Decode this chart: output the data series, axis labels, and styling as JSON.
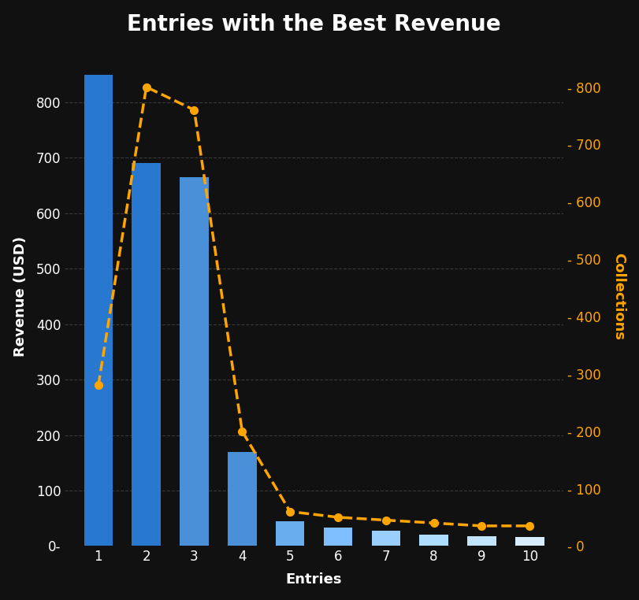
{
  "title": "Entries with the Best Revenue",
  "entries": [
    1,
    2,
    3,
    4,
    5,
    6,
    7,
    8,
    9,
    10
  ],
  "revenue": [
    850,
    690,
    665,
    170,
    45,
    33,
    28,
    20,
    18,
    16
  ],
  "collections": [
    280,
    800,
    760,
    200,
    60,
    50,
    45,
    40,
    35,
    35
  ],
  "bar_colors": [
    "#2878D0",
    "#2878D0",
    "#4A90D9",
    "#4A90D9",
    "#6AADEE",
    "#80BFFF",
    "#9ACEFF",
    "#AEDDFF",
    "#C2E5FF",
    "#D8EEFF"
  ],
  "line_color": "#FFA500",
  "background_color": "#111111",
  "text_color": "#FFFFFF",
  "grid_color": "#555555",
  "xlabel": "Entries",
  "ylabel_left": "Revenue (USD)",
  "ylabel_right": "Collections",
  "ylim_left": [
    0,
    900
  ],
  "ylim_right": [
    0,
    870
  ],
  "right_yticks": [
    0,
    100,
    200,
    300,
    400,
    500,
    600,
    700,
    800
  ],
  "left_yticks": [
    0,
    100,
    200,
    300,
    400,
    500,
    600,
    700,
    800
  ],
  "title_fontsize": 20,
  "label_fontsize": 13,
  "tick_fontsize": 12
}
